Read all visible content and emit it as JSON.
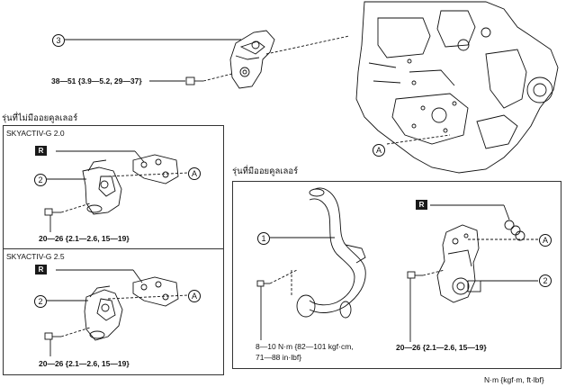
{
  "callouts": {
    "c3": "3",
    "c1": "1",
    "c2": "2",
    "A": "A"
  },
  "top": {
    "bolt_torque": "38—51 {3.9—5.2, 29—37}"
  },
  "left_section": {
    "heading": "รุ่นที่ไม่มีออยคูลเลอร์",
    "panel1": {
      "title": "SKYACTIV-G 2.0",
      "r_label": "R",
      "torque": "20—26 {2.1—2.6, 15—19}"
    },
    "panel2": {
      "title": "SKYACTIV-G 2.5",
      "r_label": "R",
      "torque": "20—26 {2.1—2.6, 15—19}"
    }
  },
  "right_section": {
    "heading": "รุ่นที่มีออยคูลเลอร์",
    "r_label": "R",
    "torque_hose_line1": "8—10 N·m {82—101 kgf·cm,",
    "torque_hose_line2": "71—88 in·lbf}",
    "torque_bracket": "20—26 {2.1—2.6, 15—19}"
  },
  "units": "N·m {kgf·m, ft·lbf}"
}
